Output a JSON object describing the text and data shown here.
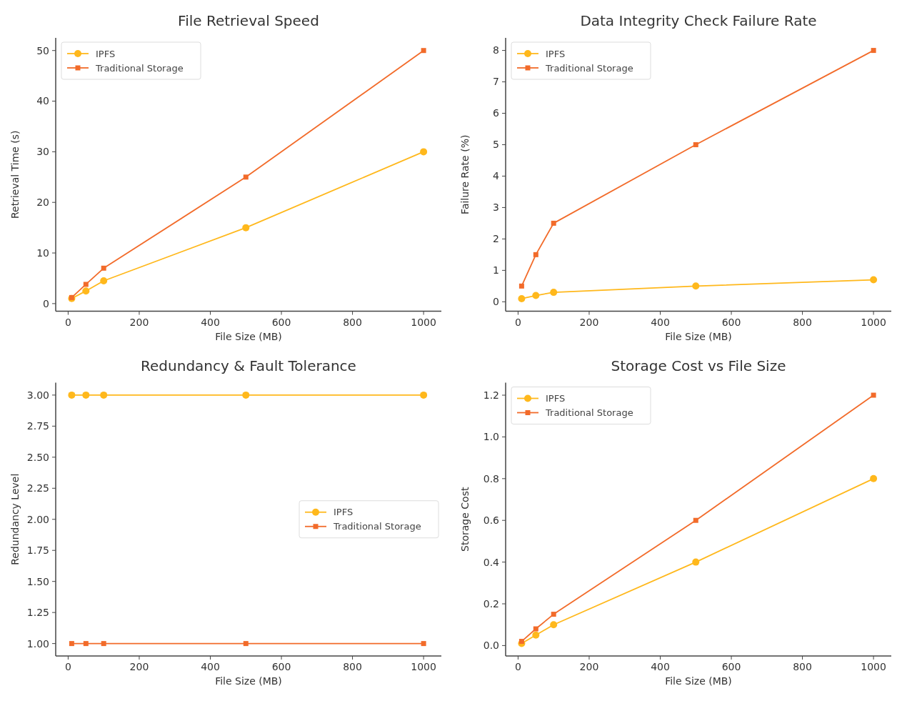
{
  "chart_data": [
    {
      "type": "line",
      "title": "File Retrieval Speed",
      "xlabel": "File Size (MB)",
      "ylabel": "Retrieval Time (s)",
      "x": [
        10,
        50,
        100,
        500,
        1000
      ],
      "xlim": [
        -35,
        1050
      ],
      "xticks": [
        0,
        200,
        400,
        600,
        800,
        1000
      ],
      "ylim": [
        -1.5,
        52.5
      ],
      "yticks": [
        0,
        10,
        20,
        30,
        40,
        50
      ],
      "legend": "top left",
      "series": [
        {
          "name": "IPFS",
          "color": "#ffb81c",
          "marker": "circle",
          "values": [
            1,
            2.5,
            4.5,
            15,
            30
          ]
        },
        {
          "name": "Traditional Storage",
          "color": "#f26b2a",
          "marker": "square",
          "values": [
            1.2,
            3.8,
            7,
            25,
            50
          ]
        }
      ]
    },
    {
      "type": "line",
      "title": "Data Integrity Check Failure Rate",
      "xlabel": "File Size (MB)",
      "ylabel": "Failure Rate (%)",
      "x": [
        10,
        50,
        100,
        500,
        1000
      ],
      "xlim": [
        -35,
        1050
      ],
      "xticks": [
        0,
        200,
        400,
        600,
        800,
        1000
      ],
      "ylim": [
        -0.3,
        8.4
      ],
      "yticks": [
        0,
        1,
        2,
        3,
        4,
        5,
        6,
        7,
        8
      ],
      "legend": "top left",
      "series": [
        {
          "name": "IPFS",
          "color": "#ffb81c",
          "marker": "circle",
          "values": [
            0.1,
            0.2,
            0.3,
            0.5,
            0.7
          ]
        },
        {
          "name": "Traditional Storage",
          "color": "#f26b2a",
          "marker": "square",
          "values": [
            0.5,
            1.5,
            2.5,
            5,
            8
          ]
        }
      ]
    },
    {
      "type": "line",
      "title": "Redundancy & Fault Tolerance",
      "xlabel": "File Size (MB)",
      "ylabel": "Redundancy Level",
      "x": [
        10,
        50,
        100,
        500,
        1000
      ],
      "xlim": [
        -35,
        1050
      ],
      "xticks": [
        0,
        200,
        400,
        600,
        800,
        1000
      ],
      "ylim": [
        0.9,
        3.1
      ],
      "yticks": [
        {
          "value": 1,
          "label": "1.00"
        },
        {
          "value": 1.25,
          "label": "1.25"
        },
        {
          "value": 1.5,
          "label": "1.50"
        },
        {
          "value": 1.75,
          "label": "1.75"
        },
        {
          "value": 2,
          "label": "2.00"
        },
        {
          "value": 2.25,
          "label": "2.25"
        },
        {
          "value": 2.5,
          "label": "2.50"
        },
        {
          "value": 2.75,
          "label": "2.75"
        },
        {
          "value": 3,
          "label": "3.00"
        }
      ],
      "legend": "right",
      "series": [
        {
          "name": "IPFS",
          "color": "#ffb81c",
          "marker": "circle",
          "values": [
            3,
            3,
            3,
            3,
            3
          ]
        },
        {
          "name": "Traditional Storage",
          "color": "#f26b2a",
          "marker": "square",
          "values": [
            1,
            1,
            1,
            1,
            1
          ]
        }
      ]
    },
    {
      "type": "line",
      "title": "Storage Cost vs File Size",
      "xlabel": "File Size (MB)",
      "ylabel": "Storage Cost",
      "x": [
        10,
        50,
        100,
        500,
        1000
      ],
      "xlim": [
        -35,
        1050
      ],
      "xticks": [
        0,
        200,
        400,
        600,
        800,
        1000
      ],
      "ylim": [
        -0.05,
        1.26
      ],
      "yticks": [
        {
          "value": 0,
          "label": "0.0"
        },
        0.2,
        0.4,
        0.6,
        0.8,
        {
          "value": 1,
          "label": "1.0"
        },
        1.2
      ],
      "legend": "top left",
      "series": [
        {
          "name": "IPFS",
          "color": "#ffb81c",
          "marker": "circle",
          "values": [
            0.01,
            0.05,
            0.1,
            0.4,
            0.8
          ]
        },
        {
          "name": "Traditional Storage",
          "color": "#f26b2a",
          "marker": "square",
          "values": [
            0.02,
            0.08,
            0.15,
            0.6,
            1.2
          ]
        }
      ]
    }
  ]
}
